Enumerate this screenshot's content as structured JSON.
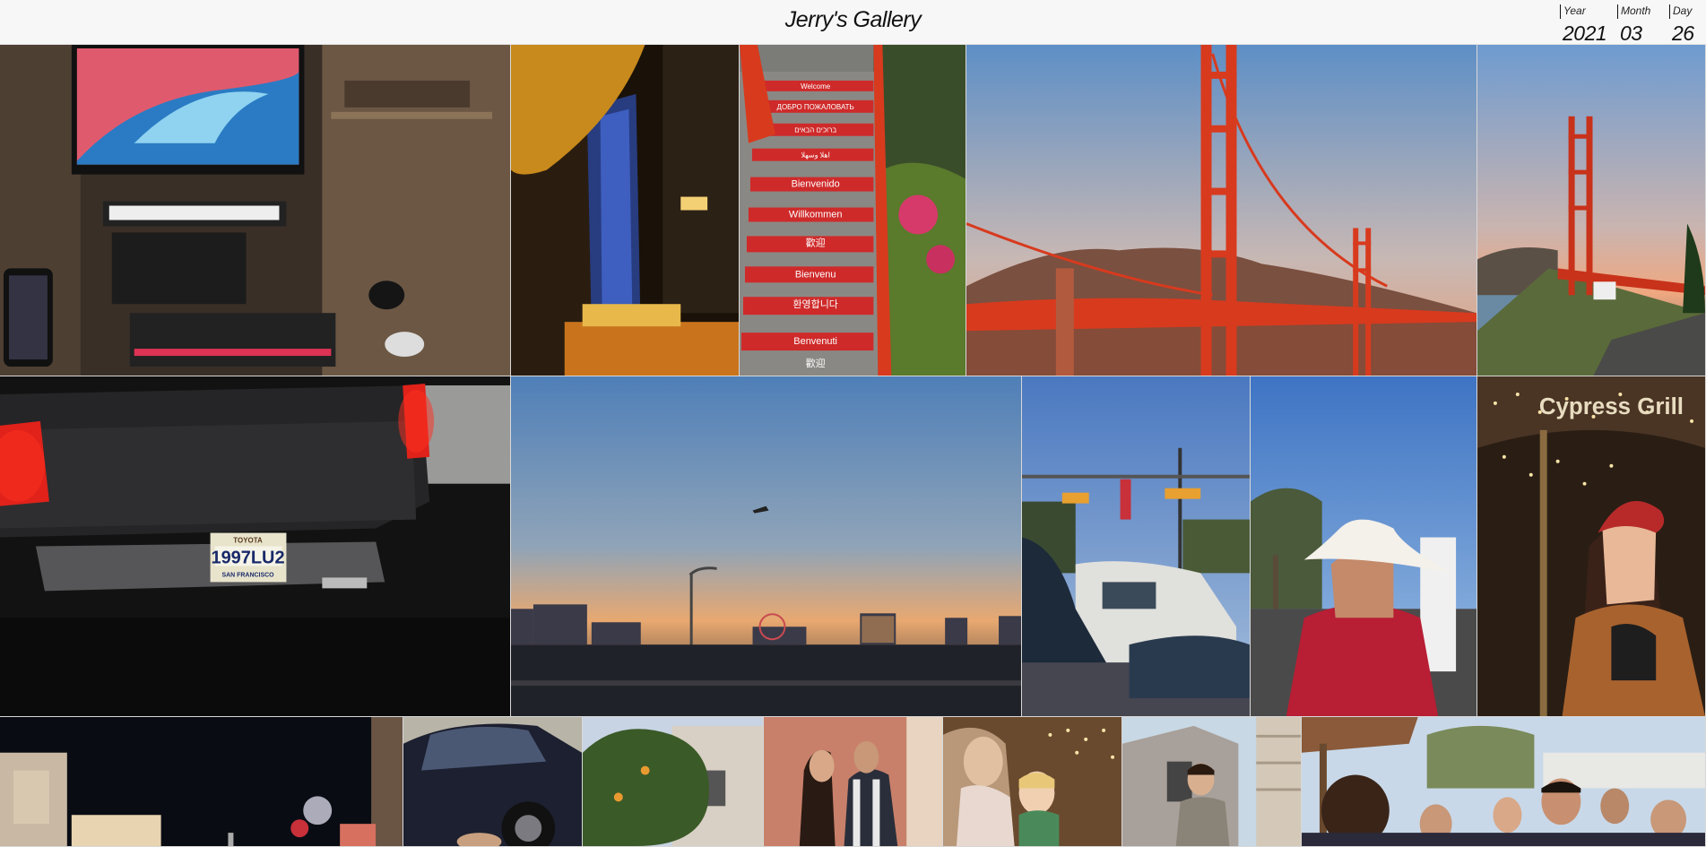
{
  "header": {
    "title": "Jerry's Gallery",
    "date": {
      "year_label": "Year",
      "year": "2021",
      "month_label": "Month",
      "month": "03",
      "day_label": "Day",
      "day": "26"
    }
  },
  "photos": [
    {
      "subject": "desk-setup"
    },
    {
      "subject": "night-tower"
    },
    {
      "subject": "welcome-stairs",
      "stair_text": [
        "Welcome",
        "ДОБРО ПОЖАЛОВАТЬ",
        "ברוכים הבאים",
        "اهلا وسهلا",
        "Bienvenido",
        "Willkommen",
        "歡迎",
        "Bienvenu",
        "환영합니다",
        "Benvenuti",
        "歡迎"
      ]
    },
    {
      "subject": "golden-gate-bridge"
    },
    {
      "subject": "golden-gate-tower"
    },
    {
      "subject": "truck-night",
      "plate": "1997LU2",
      "plate_top": "TOYOTA",
      "plate_bottom": "SAN FRANCISCO"
    },
    {
      "subject": "las-vegas-dusk"
    },
    {
      "subject": "street-intersection"
    },
    {
      "subject": "cowboy-hat-man"
    },
    {
      "subject": "woman-restaurant",
      "sign": "Cypress Grill"
    },
    {
      "subject": "night-town"
    },
    {
      "subject": "car-parked"
    },
    {
      "subject": "tree-house"
    },
    {
      "subject": "couple-dancing"
    },
    {
      "subject": "woman-child"
    },
    {
      "subject": "man-house"
    },
    {
      "subject": "crowd-outdoor"
    }
  ],
  "colors": {
    "bridge_red": "#d83a1e",
    "sky_blue": "#5f8fc4",
    "dusk_orange": "#e8a070"
  }
}
